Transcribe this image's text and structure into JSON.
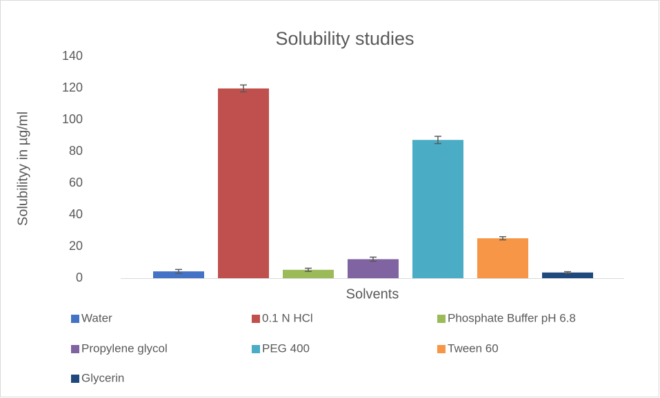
{
  "chart_data": {
    "type": "bar",
    "title": "Solubility studies",
    "x_label": "Solvents",
    "y_label": "Solubilityy in µg/ml",
    "ylim": [
      0,
      140
    ],
    "yticks": [
      0,
      20,
      40,
      60,
      80,
      100,
      120,
      140
    ],
    "grid": false,
    "legend": "bottom",
    "series": [
      {
        "name": "Water",
        "color": "#4472c4",
        "values": [
          4.3
        ],
        "errors": [
          1.2
        ]
      },
      {
        "name": "0.1 N HCl",
        "color": "#c0504d",
        "values": [
          119.8
        ],
        "errors": [
          2.2
        ]
      },
      {
        "name": "Phosphate Buffer pH 6.8",
        "color": "#9bbb59",
        "values": [
          5.3
        ],
        "errors": [
          1.0
        ]
      },
      {
        "name": "Propylene glycol",
        "color": "#8064a2",
        "values": [
          12
        ],
        "errors": [
          1.3
        ]
      },
      {
        "name": "PEG 400",
        "color": "#4bacc6",
        "values": [
          87.3
        ],
        "errors": [
          2.3
        ]
      },
      {
        "name": "Tween 60",
        "color": "#f79646",
        "values": [
          25.2
        ],
        "errors": [
          1.0
        ]
      },
      {
        "name": "Glycerin",
        "color": "#1f497d",
        "values": [
          3.6
        ],
        "errors": [
          0.5
        ]
      }
    ]
  }
}
